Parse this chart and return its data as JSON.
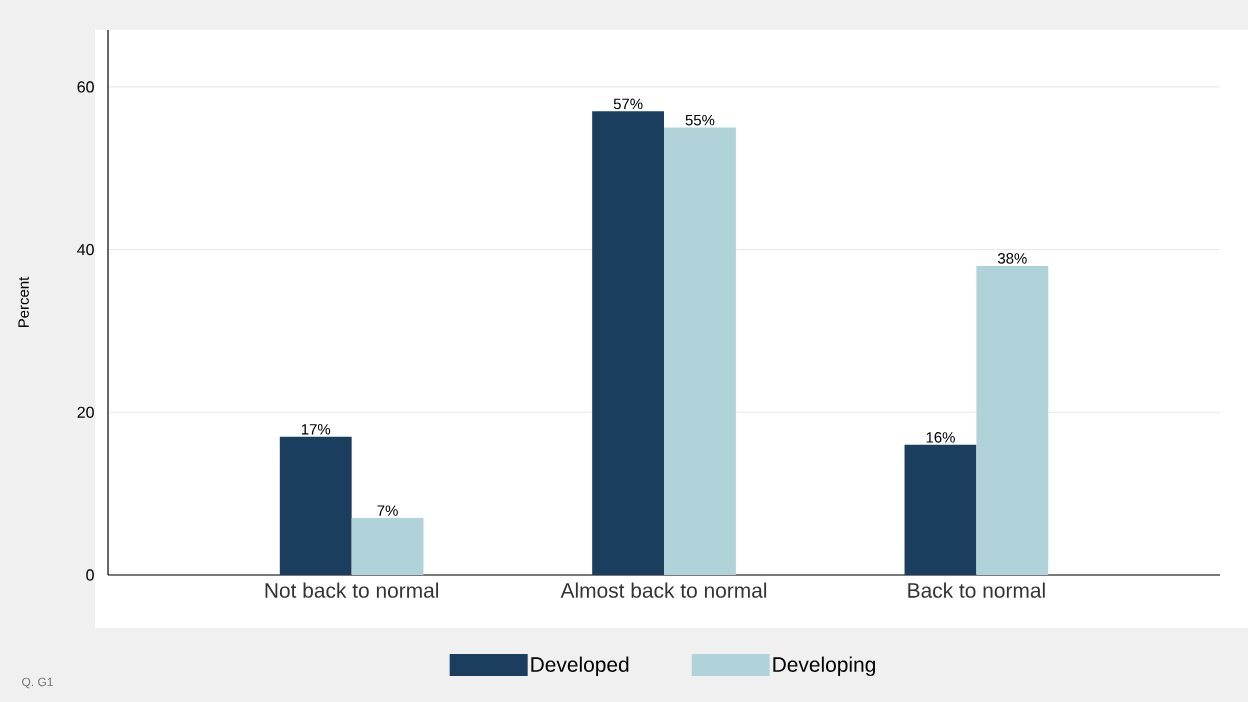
{
  "chart_data": {
    "type": "bar",
    "ylabel": "Percent",
    "categories": [
      "Not back to normal",
      "Almost back to normal",
      "Back to normal"
    ],
    "series": [
      {
        "name": "Developed",
        "color": "#1b3d5e",
        "values": [
          17,
          57,
          16
        ],
        "value_labels": [
          "17%",
          "57%",
          "16%"
        ]
      },
      {
        "name": "Developing",
        "color": "#afd3d9",
        "values": [
          7,
          55,
          38
        ],
        "value_labels": [
          "7%",
          "55%",
          "38%"
        ]
      }
    ],
    "ylim": [
      0,
      67
    ],
    "yticks": [
      0,
      20,
      40,
      60
    ],
    "grid": "y",
    "legend": "bottom",
    "annotations": [
      "Q. G1"
    ]
  }
}
